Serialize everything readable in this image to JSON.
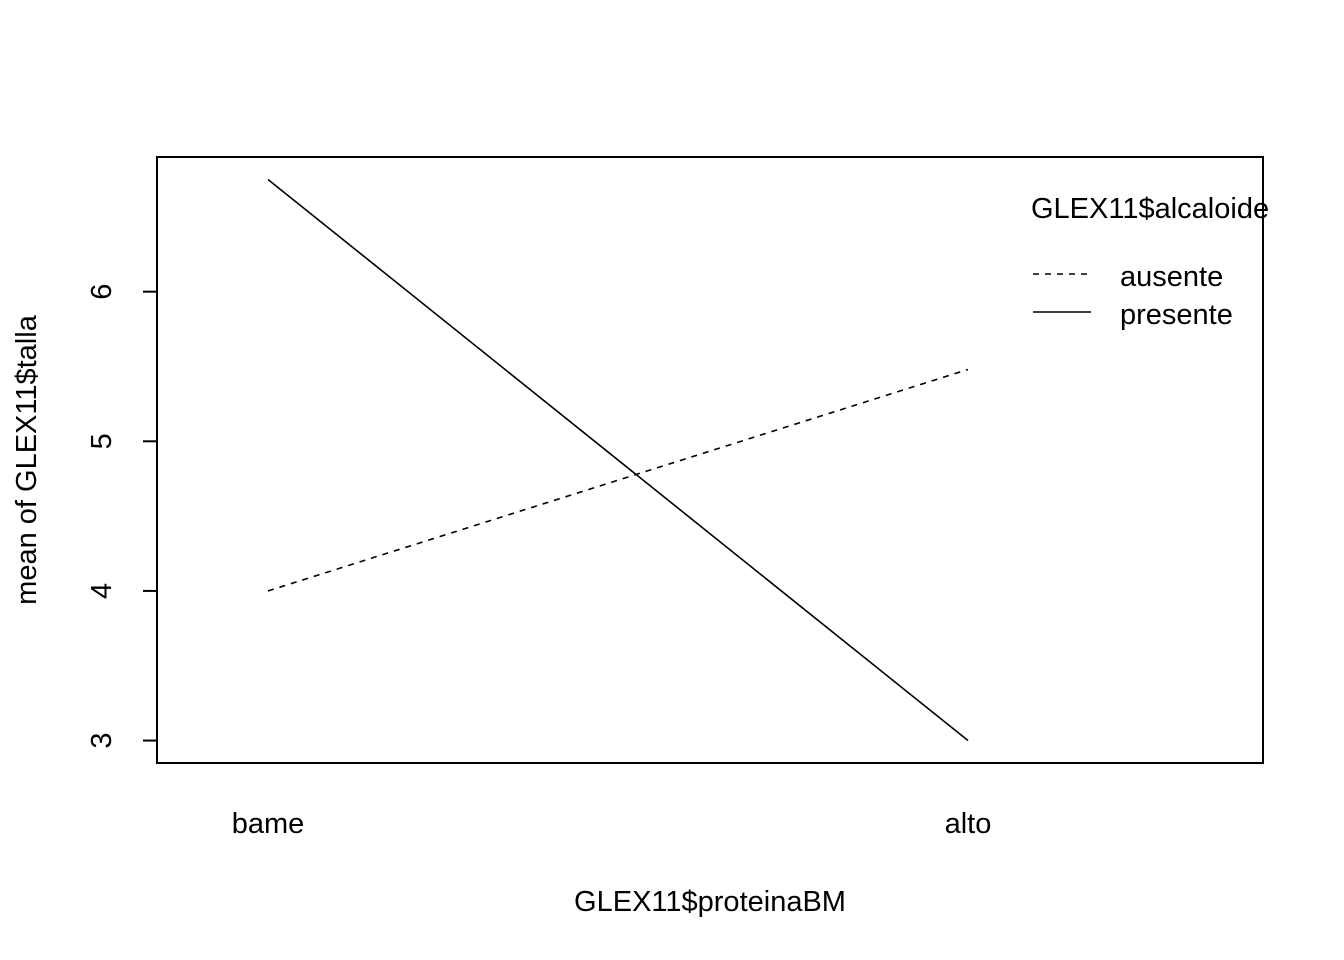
{
  "chart_data": {
    "type": "line",
    "title": "",
    "xlabel": "GLEX11$proteinaBM",
    "ylabel": "mean of  GLEX11$talla",
    "categories": [
      "bame",
      "alto"
    ],
    "ylim": [
      2.85,
      6.9
    ],
    "yticks": [
      3,
      4,
      5,
      6
    ],
    "grid": false,
    "legend": {
      "title": "GLEX11$alcaloide",
      "position": "top-right"
    },
    "series": [
      {
        "name": "ausente",
        "values": [
          4.0,
          5.48
        ],
        "linestyle": "dashed",
        "color": "#000000"
      },
      {
        "name": "presente",
        "values": [
          6.75,
          3.0
        ],
        "linestyle": "solid",
        "color": "#000000"
      }
    ]
  }
}
